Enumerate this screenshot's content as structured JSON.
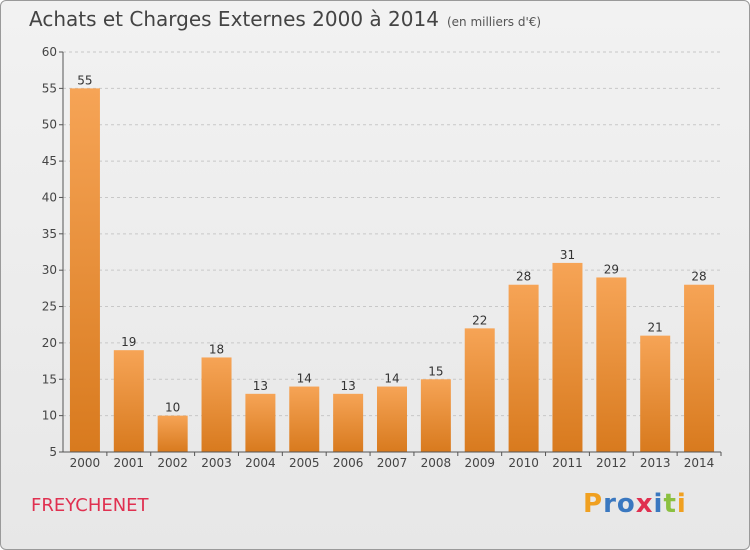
{
  "title": "Achats et Charges Externes 2000 à 2014",
  "subtitle": "(en milliers d'€)",
  "commune": "FREYCHENET",
  "logo": {
    "text": "Proxiti",
    "letters": [
      "P",
      "r",
      "o",
      "x",
      "i",
      "t",
      "i"
    ],
    "colors": [
      "#f0a020",
      "#3a78c0",
      "#3a78c0",
      "#e03050",
      "#3a78c0",
      "#8bc040",
      "#f0a020"
    ]
  },
  "colors": {
    "bar_top": "#f6a456",
    "bar_bottom": "#d87a1e",
    "grid": "#c8c8c8",
    "axis": "#555555"
  },
  "chart_data": {
    "type": "bar",
    "title": "Achats et Charges Externes 2000 à 2014",
    "subtitle": "(en milliers d'€)",
    "xlabel": "",
    "ylabel": "",
    "ylim": [
      5,
      60
    ],
    "yticks": [
      5,
      10,
      15,
      20,
      25,
      30,
      35,
      40,
      45,
      50,
      55,
      60
    ],
    "grid": true,
    "categories": [
      "2000",
      "2001",
      "2002",
      "2003",
      "2004",
      "2005",
      "2006",
      "2007",
      "2008",
      "2009",
      "2010",
      "2011",
      "2012",
      "2013",
      "2014"
    ],
    "values": [
      55,
      19,
      10,
      18,
      13,
      14,
      13,
      14,
      15,
      22,
      28,
      31,
      29,
      21,
      28
    ]
  }
}
